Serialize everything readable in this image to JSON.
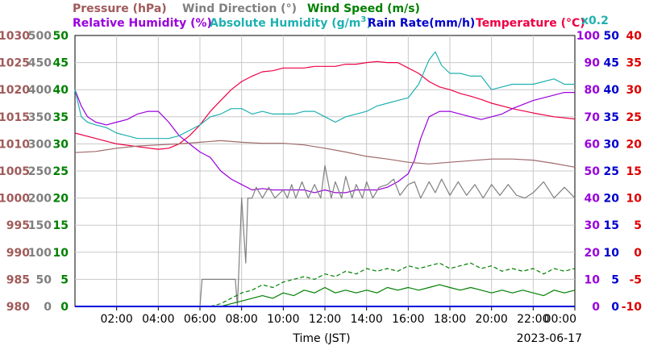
{
  "chart_data": {
    "type": "line",
    "header": {
      "pressure": "Pressure (hPa)",
      "wind_direction": "Wind Direction (°)",
      "wind_speed": "Wind Speed (m/s)",
      "relative_humidity": "Relative Humidity (%)",
      "absolute_humidity": "Absolute Humidity (g/m",
      "absolute_humidity_sup": "3",
      "absolute_humidity_close": ")",
      "rain_rate": "Rain Rate(mm/h)",
      "temperature": "Temperature (°C)",
      "scale_note": "x0.2"
    },
    "xlabel": "Time (JST)",
    "date": "2023-06-17",
    "x_ticks": [
      "02:00",
      "04:00",
      "06:00",
      "08:00",
      "10:00",
      "12:00",
      "14:00",
      "16:00",
      "18:00",
      "20:00",
      "22:00",
      "00:00"
    ],
    "x_range_hours": [
      0,
      24
    ],
    "axes": {
      "pressure": {
        "ticks": [
          "980",
          "985",
          "990",
          "995",
          "1000",
          "1005",
          "1010",
          "1015",
          "1020",
          "1025",
          "1030"
        ],
        "range": [
          980,
          1030
        ],
        "color": "#a05a5a"
      },
      "wind_direction": {
        "ticks": [
          "0",
          "50",
          "100",
          "150",
          "200",
          "250",
          "300",
          "350",
          "400",
          "450",
          "500"
        ],
        "range": [
          0,
          500
        ],
        "color": "#808080"
      },
      "wind_speed": {
        "ticks": [
          "0",
          "5",
          "10",
          "15",
          "20",
          "25",
          "30",
          "35",
          "40",
          "45",
          "50"
        ],
        "range": [
          0,
          50
        ],
        "color": "#008000"
      },
      "relative_humidity": {
        "ticks": [
          "0",
          "10",
          "20",
          "30",
          "40",
          "50",
          "60",
          "70",
          "80",
          "90",
          "100"
        ],
        "range": [
          0,
          100
        ],
        "color": "#9900dd"
      },
      "rain_rate": {
        "ticks": [
          "0",
          "5",
          "10",
          "15",
          "20",
          "25",
          "30",
          "35",
          "40",
          "45",
          "50"
        ],
        "range": [
          0,
          50
        ],
        "color": "#0000cc"
      },
      "temperature": {
        "ticks": [
          "-10",
          "-5",
          "0",
          "5",
          "10",
          "15",
          "20",
          "25",
          "30",
          "35",
          "40"
        ],
        "range": [
          -10,
          40
        ],
        "color": "#dd0000"
      }
    },
    "colors": {
      "pressure": "#a06a6a",
      "wind_direction": "#808080",
      "wind_speed": "#008000",
      "relative_humidity": "#9900dd",
      "absolute_humidity": "#20b0b0",
      "rain_rate": "#0000dd",
      "temperature": "#ee0044"
    },
    "series": [
      {
        "key": "temperature",
        "axis": "temperature",
        "style": "solid",
        "x": [
          0,
          1,
          2,
          3,
          4,
          4.5,
          5,
          5.5,
          6,
          6.5,
          7,
          7.5,
          8,
          8.5,
          9,
          9.5,
          10,
          10.5,
          11,
          11.5,
          12,
          12.5,
          13,
          13.5,
          14,
          14.5,
          15,
          15.5,
          16,
          16.5,
          17,
          17.5,
          18,
          18.5,
          19,
          19.5,
          20,
          21,
          22,
          23,
          24
        ],
        "y": [
          22,
          21,
          20,
          19.5,
          19,
          19.2,
          20,
          21.5,
          23.5,
          26,
          28,
          30,
          31.5,
          32.5,
          33.3,
          33.5,
          34,
          34,
          34,
          34.3,
          34.3,
          34.3,
          34.7,
          34.7,
          35,
          35.2,
          35,
          35,
          34,
          33,
          31.5,
          30.5,
          30,
          29.3,
          28.8,
          28.2,
          27.5,
          26.5,
          25.7,
          25,
          24.6
        ]
      },
      {
        "key": "relative_humidity",
        "axis": "relative_humidity",
        "style": "solid",
        "x": [
          0,
          0.3,
          0.6,
          1,
          1.5,
          2,
          2.5,
          3,
          3.5,
          4,
          4.5,
          5,
          5.5,
          6,
          6.5,
          7,
          7.5,
          8,
          8.5,
          9,
          9.5,
          10,
          10.5,
          11,
          11.5,
          12,
          12.5,
          13,
          13.5,
          14,
          14.5,
          15,
          15.5,
          16,
          16.3,
          16.6,
          17,
          17.5,
          18,
          18.5,
          19,
          19.5,
          20,
          20.5,
          21,
          22,
          23,
          23.5,
          24
        ],
        "y": [
          80,
          74,
          70,
          68,
          67,
          68,
          69,
          71,
          72,
          72,
          68,
          63,
          60,
          57,
          55,
          50,
          47,
          45,
          43,
          43.5,
          43,
          43,
          43,
          43,
          42,
          43,
          42,
          42,
          43,
          43,
          43,
          44,
          46,
          49,
          54,
          62,
          70,
          72,
          72,
          71,
          70,
          69,
          70,
          71,
          73,
          76,
          78,
          79,
          79
        ]
      },
      {
        "key": "absolute_humidity",
        "axis": "relative_humidity",
        "style": "solid",
        "x": [
          0,
          0.3,
          0.6,
          1,
          1.5,
          2,
          2.5,
          3,
          3.5,
          4,
          4.5,
          5,
          5.5,
          6,
          6.5,
          7,
          7.5,
          8,
          8.5,
          9,
          9.5,
          10,
          10.5,
          11,
          11.5,
          12,
          12.5,
          13,
          13.5,
          14,
          14.5,
          15,
          15.5,
          16,
          16.5,
          17,
          17.3,
          17.6,
          18,
          18.5,
          19,
          19.5,
          20,
          20.5,
          21,
          22,
          23,
          23.5,
          24
        ],
        "y": [
          80,
          70,
          68,
          67,
          66,
          64,
          63,
          62,
          62,
          62,
          62,
          63,
          65,
          67,
          70,
          71,
          73,
          73,
          71,
          72,
          71,
          71,
          71,
          72,
          72,
          70,
          68,
          70,
          71,
          72,
          74,
          75,
          76,
          77,
          82,
          91,
          94,
          89,
          86,
          86,
          85,
          85,
          80,
          81,
          82,
          82,
          84,
          82,
          82
        ]
      },
      {
        "key": "pressure",
        "axis": "pressure",
        "style": "solid",
        "x": [
          0,
          1,
          2,
          3,
          4,
          5,
          6,
          7,
          8,
          9,
          10,
          11,
          12,
          13,
          14,
          15,
          16,
          17,
          18,
          19,
          20,
          21,
          22,
          23,
          24
        ],
        "y": [
          1008.4,
          1008.6,
          1009.2,
          1009.6,
          1009.8,
          1010,
          1010.3,
          1010.6,
          1010.3,
          1010.1,
          1010.1,
          1009.8,
          1009.2,
          1008.5,
          1007.7,
          1007.2,
          1006.6,
          1006.3,
          1006.6,
          1006.9,
          1007.2,
          1007.2,
          1007,
          1006.4,
          1005.7
        ]
      },
      {
        "key": "wind_direction",
        "axis": "wind_direction",
        "style": "solid",
        "x": [
          6,
          6.1,
          7.7,
          7.8,
          8,
          8.2,
          8.3,
          8.5,
          8.7,
          9,
          9.3,
          9.6,
          10,
          10.2,
          10.4,
          10.6,
          10.9,
          11.2,
          11.5,
          11.8,
          12,
          12.3,
          12.5,
          12.8,
          13,
          13.3,
          13.5,
          13.8,
          14,
          14.3,
          14.6,
          15,
          15.3,
          15.6,
          16,
          16.3,
          16.6,
          17,
          17.3,
          17.6,
          18,
          18.4,
          18.8,
          19.2,
          19.6,
          20,
          20.4,
          20.8,
          21.2,
          21.6,
          22,
          22.5,
          23,
          23.5,
          24
        ],
        "y": [
          0,
          50,
          50,
          0,
          200,
          80,
          200,
          200,
          220,
          200,
          220,
          200,
          215,
          200,
          225,
          200,
          230,
          200,
          225,
          200,
          260,
          200,
          230,
          200,
          240,
          200,
          225,
          200,
          230,
          200,
          220,
          225,
          235,
          205,
          225,
          230,
          200,
          230,
          210,
          235,
          205,
          230,
          205,
          225,
          200,
          225,
          205,
          225,
          205,
          200,
          210,
          230,
          200,
          220,
          200
        ]
      },
      {
        "key": "wind_speed_max",
        "axis": "wind_speed",
        "style": "dashed",
        "x": [
          6.5,
          7,
          7.5,
          8,
          8.5,
          9,
          9.5,
          10,
          10.5,
          11,
          11.5,
          12,
          12.5,
          13,
          13.5,
          14,
          14.5,
          15,
          15.5,
          16,
          16.5,
          17,
          17.5,
          18,
          18.5,
          19,
          19.5,
          20,
          20.5,
          21,
          21.5,
          22,
          22.5,
          23,
          23.5,
          24
        ],
        "y": [
          0,
          0.5,
          1.5,
          2.5,
          3,
          4,
          3.5,
          4.5,
          5,
          5.5,
          5,
          6,
          5.5,
          6.5,
          6,
          7,
          6.5,
          7,
          6.5,
          7.5,
          7,
          7.5,
          8,
          7,
          7.5,
          8,
          7,
          7.5,
          6.5,
          7,
          6.5,
          7,
          6,
          7,
          6.5,
          7
        ]
      },
      {
        "key": "wind_speed_avg",
        "axis": "wind_speed",
        "style": "solid",
        "x": [
          7,
          7.5,
          8,
          8.5,
          9,
          9.5,
          10,
          10.5,
          11,
          11.5,
          12,
          12.5,
          13,
          13.5,
          14,
          14.5,
          15,
          15.5,
          16,
          16.5,
          17,
          17.5,
          18,
          18.5,
          19,
          19.5,
          20,
          20.5,
          21,
          21.5,
          22,
          22.5,
          23,
          23.5,
          24
        ],
        "y": [
          0,
          0.5,
          1,
          1.5,
          2,
          1.5,
          2.5,
          2,
          3,
          2.5,
          3.5,
          2.5,
          3,
          2.5,
          3,
          2.5,
          3.5,
          3,
          3.5,
          3,
          3.5,
          4,
          3.5,
          3,
          3.5,
          3,
          2.5,
          3,
          2.5,
          3,
          2.5,
          2,
          3,
          2.5,
          3
        ]
      },
      {
        "key": "rain_rate",
        "axis": "rain_rate",
        "style": "solid",
        "x": [
          0,
          24
        ],
        "y": [
          0,
          0
        ]
      }
    ]
  }
}
